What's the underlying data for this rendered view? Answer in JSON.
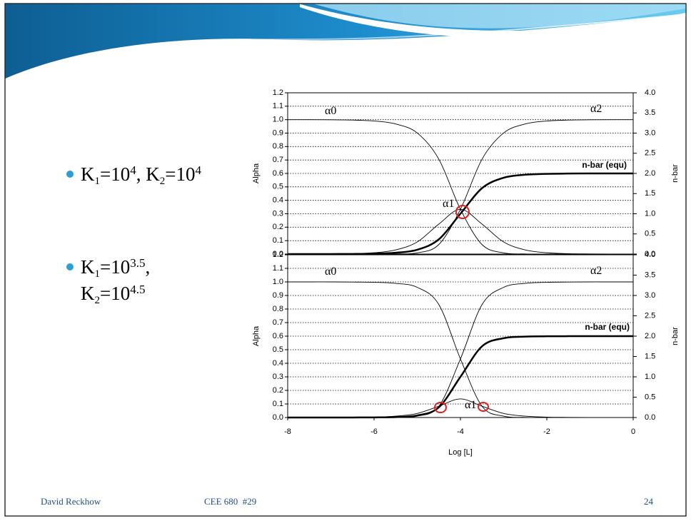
{
  "slide": {
    "bullets": [
      [
        [
          {
            "t": "K"
          },
          {
            "sub": "1"
          },
          {
            "t": "=10"
          },
          {
            "sup": "4"
          },
          {
            "t": ", K"
          },
          {
            "sub": "2"
          },
          {
            "t": "=10"
          },
          {
            "sup": "4"
          }
        ]
      ],
      [
        [
          {
            "t": "K"
          },
          {
            "sub": "1"
          },
          {
            "t": "=10"
          },
          {
            "sup": "3.5"
          },
          {
            "t": ","
          }
        ],
        [
          {
            "t": "K"
          },
          {
            "sub": "2"
          },
          {
            "t": "=10"
          },
          {
            "sup": "4.5"
          }
        ]
      ]
    ],
    "footer": {
      "author": "David Reckhow",
      "course": "CEE 680  #29",
      "page": "24"
    }
  },
  "chart_data": [
    {
      "type": "line",
      "ylabel": "Alpha",
      "y2label": "n-bar",
      "grid": true,
      "xlim": [
        -8,
        0
      ],
      "ylim": [
        0,
        1.2
      ],
      "yticks": [
        {
          "value": 0,
          "label": "0.0"
        },
        0.1,
        0.2,
        0.3,
        0.4,
        0.5,
        0.6,
        0.7,
        0.8,
        0.9,
        {
          "value": 1,
          "label": "1.0"
        },
        1.1,
        1.2
      ],
      "y2lim": [
        0,
        4
      ],
      "y2ticks": [
        {
          "value": 0,
          "label": "0.0"
        },
        0.5,
        {
          "value": 1,
          "label": "1.0"
        },
        1.5,
        {
          "value": 2,
          "label": "2.0"
        },
        2.5,
        {
          "value": 3,
          "label": "3.0"
        },
        3.5,
        {
          "value": 4,
          "label": "4.0"
        }
      ],
      "x": [
        -8,
        -7.5,
        -7,
        -6.5,
        -6,
        -5.5,
        -5,
        -4.5,
        -4,
        -3.5,
        -3,
        -2.5,
        -2,
        -1.5,
        -1,
        -0.5,
        0
      ],
      "series": [
        {
          "name": "α0",
          "color": "#000000",
          "values": [
            1,
            1,
            0.999,
            0.997,
            0.99,
            0.968,
            0.901,
            0.706,
            0.333,
            0.071,
            0.009,
            0.001,
            0,
            0,
            0,
            0,
            0
          ]
        },
        {
          "name": "α1",
          "color": "#000000",
          "values": [
            0,
            0,
            0.001,
            0.003,
            0.01,
            0.031,
            0.09,
            0.223,
            0.333,
            0.223,
            0.09,
            0.031,
            0.01,
            0.003,
            0.001,
            0,
            0
          ]
        },
        {
          "name": "α2",
          "color": "#000000",
          "values": [
            0,
            0,
            0,
            0,
            0,
            0.001,
            0.009,
            0.071,
            0.333,
            0.706,
            0.901,
            0.968,
            0.99,
            0.997,
            0.999,
            1,
            1
          ]
        },
        {
          "name": "n-bar (equ)",
          "color": "#000000",
          "axis": "y2",
          "values": [
            0,
            0,
            0.001,
            0.003,
            0.01,
            0.033,
            0.108,
            0.365,
            1,
            1.635,
            1.892,
            1.968,
            1.99,
            1.997,
            1.999,
            2,
            2
          ]
        }
      ]
    },
    {
      "type": "line",
      "ylabel": "Alpha",
      "y2label": "n-bar",
      "xlabel": "Log [L]",
      "grid": true,
      "xlim": [
        -8,
        0
      ],
      "xticks": [
        -8,
        -6,
        -4,
        -2,
        0
      ],
      "ylim": [
        0,
        1.2
      ],
      "yticks": [
        {
          "value": 0,
          "label": "0.0"
        },
        0.1,
        0.2,
        0.3,
        0.4,
        0.5,
        0.6,
        0.7,
        0.8,
        0.9,
        {
          "value": 1,
          "label": "1.0"
        },
        1.1,
        1.2
      ],
      "y2lim": [
        0,
        4
      ],
      "y2ticks": [
        {
          "value": 0,
          "label": "0.0"
        },
        0.5,
        {
          "value": 1,
          "label": "1.0"
        },
        1.5,
        {
          "value": 2,
          "label": "2.0"
        },
        2.5,
        {
          "value": 3,
          "label": "3.0"
        },
        3.5,
        {
          "value": 4,
          "label": "4.0"
        }
      ],
      "x": [
        -8,
        -7.5,
        -7,
        -6.5,
        -6,
        -5.5,
        -5,
        -4.5,
        -4,
        -3.5,
        -3,
        -2.5,
        -2,
        -1.5,
        -1,
        -0.5,
        0
      ],
      "series": [
        {
          "name": "α0",
          "color": "#000000",
          "values": [
            1,
            1,
            1,
            0.999,
            0.997,
            0.989,
            0.96,
            0.833,
            0.432,
            0.083,
            0.01,
            0.001,
            0,
            0,
            0,
            0,
            0
          ]
        },
        {
          "name": "α1",
          "color": "#000000",
          "values": [
            0,
            0,
            0,
            0.001,
            0.003,
            0.01,
            0.03,
            0.083,
            0.137,
            0.083,
            0.03,
            0.01,
            0.003,
            0.001,
            0,
            0,
            0
          ]
        },
        {
          "name": "α2",
          "color": "#000000",
          "values": [
            0,
            0,
            0,
            0,
            0,
            0.001,
            0.01,
            0.083,
            0.432,
            0.833,
            0.96,
            0.989,
            0.997,
            0.999,
            1,
            1,
            1
          ]
        },
        {
          "name": "n-bar (equ)",
          "color": "#000000",
          "axis": "y2",
          "values": [
            0,
            0,
            0,
            0.001,
            0.003,
            0.012,
            0.05,
            0.25,
            1,
            1.75,
            1.95,
            1.989,
            1.997,
            1.999,
            2,
            2,
            2
          ]
        }
      ]
    }
  ]
}
